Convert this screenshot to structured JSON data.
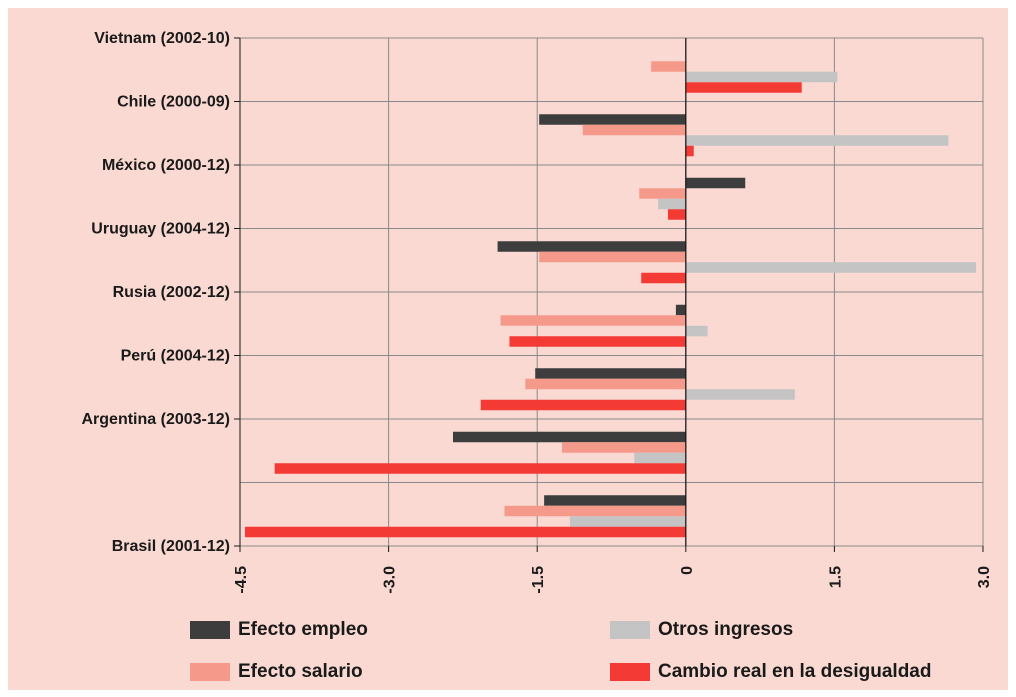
{
  "chart_data": {
    "type": "bar",
    "orientation": "horizontal",
    "categories": [
      "Vietnam (2002-10)",
      "Chile (2000-09)",
      "México (2000-12)",
      "Uruguay (2004-12)",
      "Rusia (2002-12)",
      "Perú (2004-12)",
      "Argentina (2003-12)",
      "Brasil (2001-12)"
    ],
    "series": [
      {
        "name": "Efecto empleo",
        "color": "#3d3d3d",
        "values": [
          0,
          -1.48,
          0.6,
          -1.9,
          -0.1,
          -1.52,
          -2.35,
          -1.43
        ]
      },
      {
        "name": "Efecto salario",
        "color": "#f59a8b",
        "values": [
          -0.35,
          -1.04,
          -0.47,
          -1.48,
          -1.87,
          -1.62,
          -1.25,
          -1.83
        ]
      },
      {
        "name": "Otros ingresos",
        "color": "#c4c4c4",
        "values": [
          1.53,
          2.65,
          -0.28,
          2.93,
          0.22,
          1.1,
          -0.52,
          -1.17
        ]
      },
      {
        "name": "Cambio real en la desigualdad",
        "color": "#f43a35",
        "values": [
          1.17,
          0.08,
          -0.18,
          -0.45,
          -1.78,
          -2.07,
          -4.15,
          -4.45
        ]
      }
    ],
    "x_ticks": [
      "-4.5",
      "-3.0",
      "-1.5",
      "0",
      "1.5",
      "3.0"
    ],
    "x_tick_values": [
      -4.5,
      -3.0,
      -1.5,
      0,
      1.5,
      3.0
    ],
    "xlim": [
      -4.5,
      3.0
    ],
    "grid": true,
    "title": "",
    "xlabel": "",
    "ylabel": "",
    "legend_position": "bottom"
  },
  "legend": {
    "items": [
      {
        "label": "Efecto empleo",
        "color": "#3d3d3d"
      },
      {
        "label": "Otros ingresos",
        "color": "#c4c4c4"
      },
      {
        "label": "Efecto salario",
        "color": "#f59a8b"
      },
      {
        "label": "Cambio real en la desigualdad",
        "color": "#f43a35"
      }
    ]
  }
}
